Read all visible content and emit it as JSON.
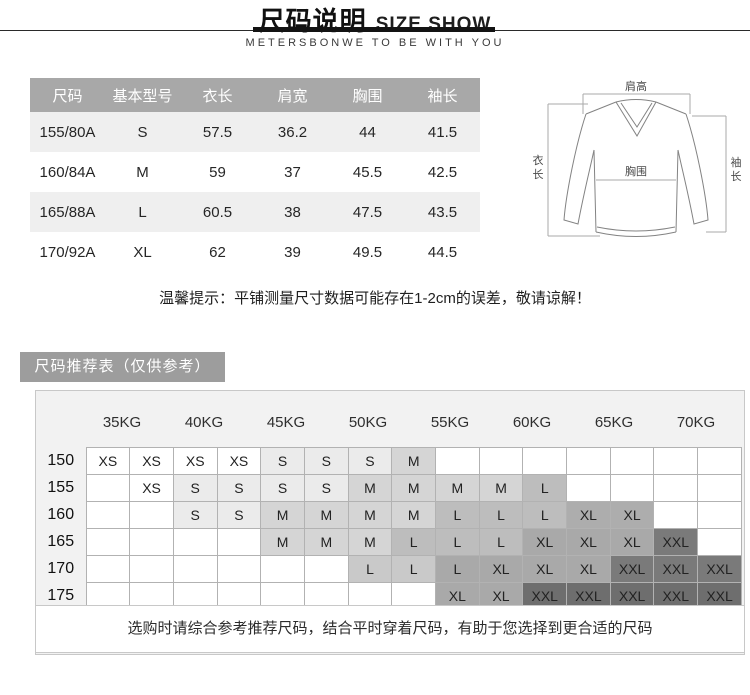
{
  "header": {
    "title_cn": "尺码说明",
    "title_en": "SIZE SHOW",
    "brand_line": "METERSBONWE TO BE WITH YOU"
  },
  "size_table": {
    "columns": [
      "尺码",
      "基本型号",
      "衣长",
      "肩宽",
      "胸围",
      "袖长"
    ],
    "rows": [
      [
        "155/80A",
        "S",
        "57.5",
        "36.2",
        "44",
        "41.5"
      ],
      [
        "160/84A",
        "M",
        "59",
        "37",
        "45.5",
        "42.5"
      ],
      [
        "165/88A",
        "L",
        "60.5",
        "38",
        "47.5",
        "43.5"
      ],
      [
        "170/92A",
        "XL",
        "62",
        "39",
        "49.5",
        "44.5"
      ]
    ]
  },
  "diagram": {
    "shoulder": "肩高",
    "chest": "胸围",
    "length": "衣长",
    "sleeve": "袖长"
  },
  "tip": "温馨提示：平铺测量尺寸数据可能存在1-2cm的误差，敬请谅解！",
  "recommend": {
    "section_title": "尺码推荐表（仅供参考）",
    "weights": [
      "35KG",
      "40KG",
      "45KG",
      "50KG",
      "55KG",
      "60KG",
      "65KG",
      "70KG"
    ],
    "footnote": "选购时请综合参考推荐尺码，结合平时穿着尺码，有助于您选择到更合适的尺码",
    "rows": [
      {
        "height": "150",
        "cells": [
          {
            "t": "XS",
            "bg": "#ffffff"
          },
          {
            "t": "XS",
            "bg": "#ffffff"
          },
          {
            "t": "XS",
            "bg": "#ffffff"
          },
          {
            "t": "XS",
            "bg": "#ffffff"
          },
          {
            "t": "S",
            "bg": "#ebebeb"
          },
          {
            "t": "S",
            "bg": "#ebebeb"
          },
          {
            "t": "S",
            "bg": "#ebebeb"
          },
          {
            "t": "M",
            "bg": "#d5d5d5"
          },
          {
            "t": "",
            "bg": "#ffffff"
          },
          {
            "t": "",
            "bg": "#ffffff"
          },
          {
            "t": "",
            "bg": "#ffffff"
          },
          {
            "t": "",
            "bg": "#ffffff"
          },
          {
            "t": "",
            "bg": "#ffffff"
          },
          {
            "t": "",
            "bg": "#ffffff"
          },
          {
            "t": "",
            "bg": "#ffffff"
          }
        ]
      },
      {
        "height": "155",
        "cells": [
          {
            "t": "",
            "bg": "#ffffff"
          },
          {
            "t": "XS",
            "bg": "#ffffff"
          },
          {
            "t": "S",
            "bg": "#ebebeb"
          },
          {
            "t": "S",
            "bg": "#ebebeb"
          },
          {
            "t": "S",
            "bg": "#ebebeb"
          },
          {
            "t": "S",
            "bg": "#ebebeb"
          },
          {
            "t": "M",
            "bg": "#d5d5d5"
          },
          {
            "t": "M",
            "bg": "#d5d5d5"
          },
          {
            "t": "M",
            "bg": "#d5d5d5"
          },
          {
            "t": "M",
            "bg": "#d5d5d5"
          },
          {
            "t": "L",
            "bg": "#bdbdbd"
          },
          {
            "t": "",
            "bg": "#ffffff"
          },
          {
            "t": "",
            "bg": "#ffffff"
          },
          {
            "t": "",
            "bg": "#ffffff"
          },
          {
            "t": "",
            "bg": "#ffffff"
          }
        ]
      },
      {
        "height": "160",
        "cells": [
          {
            "t": "",
            "bg": "#ffffff"
          },
          {
            "t": "",
            "bg": "#ffffff"
          },
          {
            "t": "S",
            "bg": "#ebebeb"
          },
          {
            "t": "S",
            "bg": "#ebebeb"
          },
          {
            "t": "M",
            "bg": "#d5d5d5"
          },
          {
            "t": "M",
            "bg": "#d5d5d5"
          },
          {
            "t": "M",
            "bg": "#d5d5d5"
          },
          {
            "t": "M",
            "bg": "#d5d5d5"
          },
          {
            "t": "L",
            "bg": "#bdbdbd"
          },
          {
            "t": "L",
            "bg": "#bdbdbd"
          },
          {
            "t": "L",
            "bg": "#bdbdbd"
          },
          {
            "t": "XL",
            "bg": "#adadad"
          },
          {
            "t": "XL",
            "bg": "#adadad"
          },
          {
            "t": "",
            "bg": "#ffffff"
          },
          {
            "t": "",
            "bg": "#ffffff"
          }
        ]
      },
      {
        "height": "165",
        "cells": [
          {
            "t": "",
            "bg": "#ffffff"
          },
          {
            "t": "",
            "bg": "#ffffff"
          },
          {
            "t": "",
            "bg": "#ffffff"
          },
          {
            "t": "",
            "bg": "#ffffff"
          },
          {
            "t": "M",
            "bg": "#d5d5d5"
          },
          {
            "t": "M",
            "bg": "#d5d5d5"
          },
          {
            "t": "M",
            "bg": "#d5d5d5"
          },
          {
            "t": "L",
            "bg": "#bdbdbd"
          },
          {
            "t": "L",
            "bg": "#bdbdbd"
          },
          {
            "t": "L",
            "bg": "#bdbdbd"
          },
          {
            "t": "XL",
            "bg": "#a9a9a9"
          },
          {
            "t": "XL",
            "bg": "#a9a9a9"
          },
          {
            "t": "XL",
            "bg": "#a9a9a9"
          },
          {
            "t": "XXL",
            "bg": "#7a7a7a"
          },
          {
            "t": "",
            "bg": "#ffffff"
          }
        ]
      },
      {
        "height": "170",
        "cells": [
          {
            "t": "",
            "bg": "#ffffff"
          },
          {
            "t": "",
            "bg": "#ffffff"
          },
          {
            "t": "",
            "bg": "#ffffff"
          },
          {
            "t": "",
            "bg": "#ffffff"
          },
          {
            "t": "",
            "bg": "#ffffff"
          },
          {
            "t": "",
            "bg": "#ffffff"
          },
          {
            "t": "L",
            "bg": "#c9c9c9"
          },
          {
            "t": "L",
            "bg": "#c9c9c9"
          },
          {
            "t": "L",
            "bg": "#a9a9a9"
          },
          {
            "t": "XL",
            "bg": "#a9a9a9"
          },
          {
            "t": "XL",
            "bg": "#a9a9a9"
          },
          {
            "t": "XL",
            "bg": "#a9a9a9"
          },
          {
            "t": "XXL",
            "bg": "#7a7a7a"
          },
          {
            "t": "XXL",
            "bg": "#7a7a7a"
          },
          {
            "t": "XXL",
            "bg": "#7a7a7a"
          }
        ]
      },
      {
        "height": "175",
        "cells": [
          {
            "t": "",
            "bg": "#ffffff"
          },
          {
            "t": "",
            "bg": "#ffffff"
          },
          {
            "t": "",
            "bg": "#ffffff"
          },
          {
            "t": "",
            "bg": "#ffffff"
          },
          {
            "t": "",
            "bg": "#ffffff"
          },
          {
            "t": "",
            "bg": "#ffffff"
          },
          {
            "t": "",
            "bg": "#ffffff"
          },
          {
            "t": "",
            "bg": "#ffffff"
          },
          {
            "t": "XL",
            "bg": "#a9a9a9"
          },
          {
            "t": "XL",
            "bg": "#a9a9a9"
          },
          {
            "t": "XXL",
            "bg": "#6e6e6e"
          },
          {
            "t": "XXL",
            "bg": "#6e6e6e"
          },
          {
            "t": "XXL",
            "bg": "#6e6e6e"
          },
          {
            "t": "XXL",
            "bg": "#6e6e6e"
          },
          {
            "t": "XXL",
            "bg": "#6e6e6e"
          }
        ]
      }
    ]
  },
  "colors": {
    "table_header_bg": "#a8a8a8",
    "table_stripe_bg": "#efefef",
    "panel_bg": "#f2f2f2",
    "section_tab_bg": "#9d9d9d",
    "grid_border": "#b2b2b2"
  }
}
